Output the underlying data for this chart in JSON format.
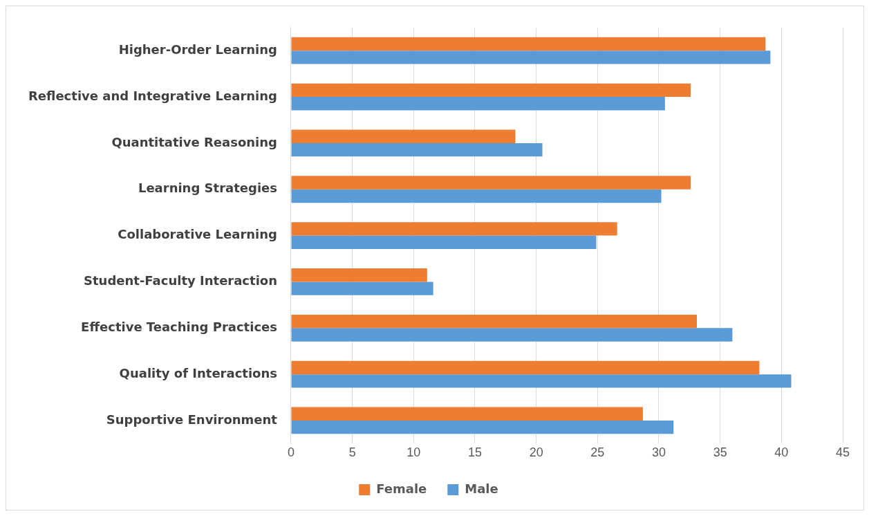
{
  "chart_data": {
    "type": "bar",
    "orientation": "horizontal",
    "categories": [
      "Higher-Order Learning",
      "Reflective and Integrative Learning",
      "Quantitative Reasoning",
      "Learning Strategies",
      "Collaborative Learning",
      "Student-Faculty Interaction",
      "Effective Teaching Practices",
      "Quality of Interactions",
      "Supportive Environment"
    ],
    "series": [
      {
        "name": "Female",
        "color": "#ed7d31",
        "values": [
          38.7,
          32.6,
          18.3,
          32.6,
          26.6,
          11.1,
          33.1,
          38.2,
          28.7
        ]
      },
      {
        "name": "Male",
        "color": "#5b9bd5",
        "values": [
          39.1,
          30.5,
          20.5,
          30.2,
          24.9,
          11.6,
          36.0,
          40.8,
          31.2
        ]
      }
    ],
    "xlim": [
      0,
      45
    ],
    "xticks": [
      0,
      5,
      10,
      15,
      20,
      25,
      30,
      35,
      40,
      45
    ],
    "grid": "x",
    "legend": "bottom"
  }
}
